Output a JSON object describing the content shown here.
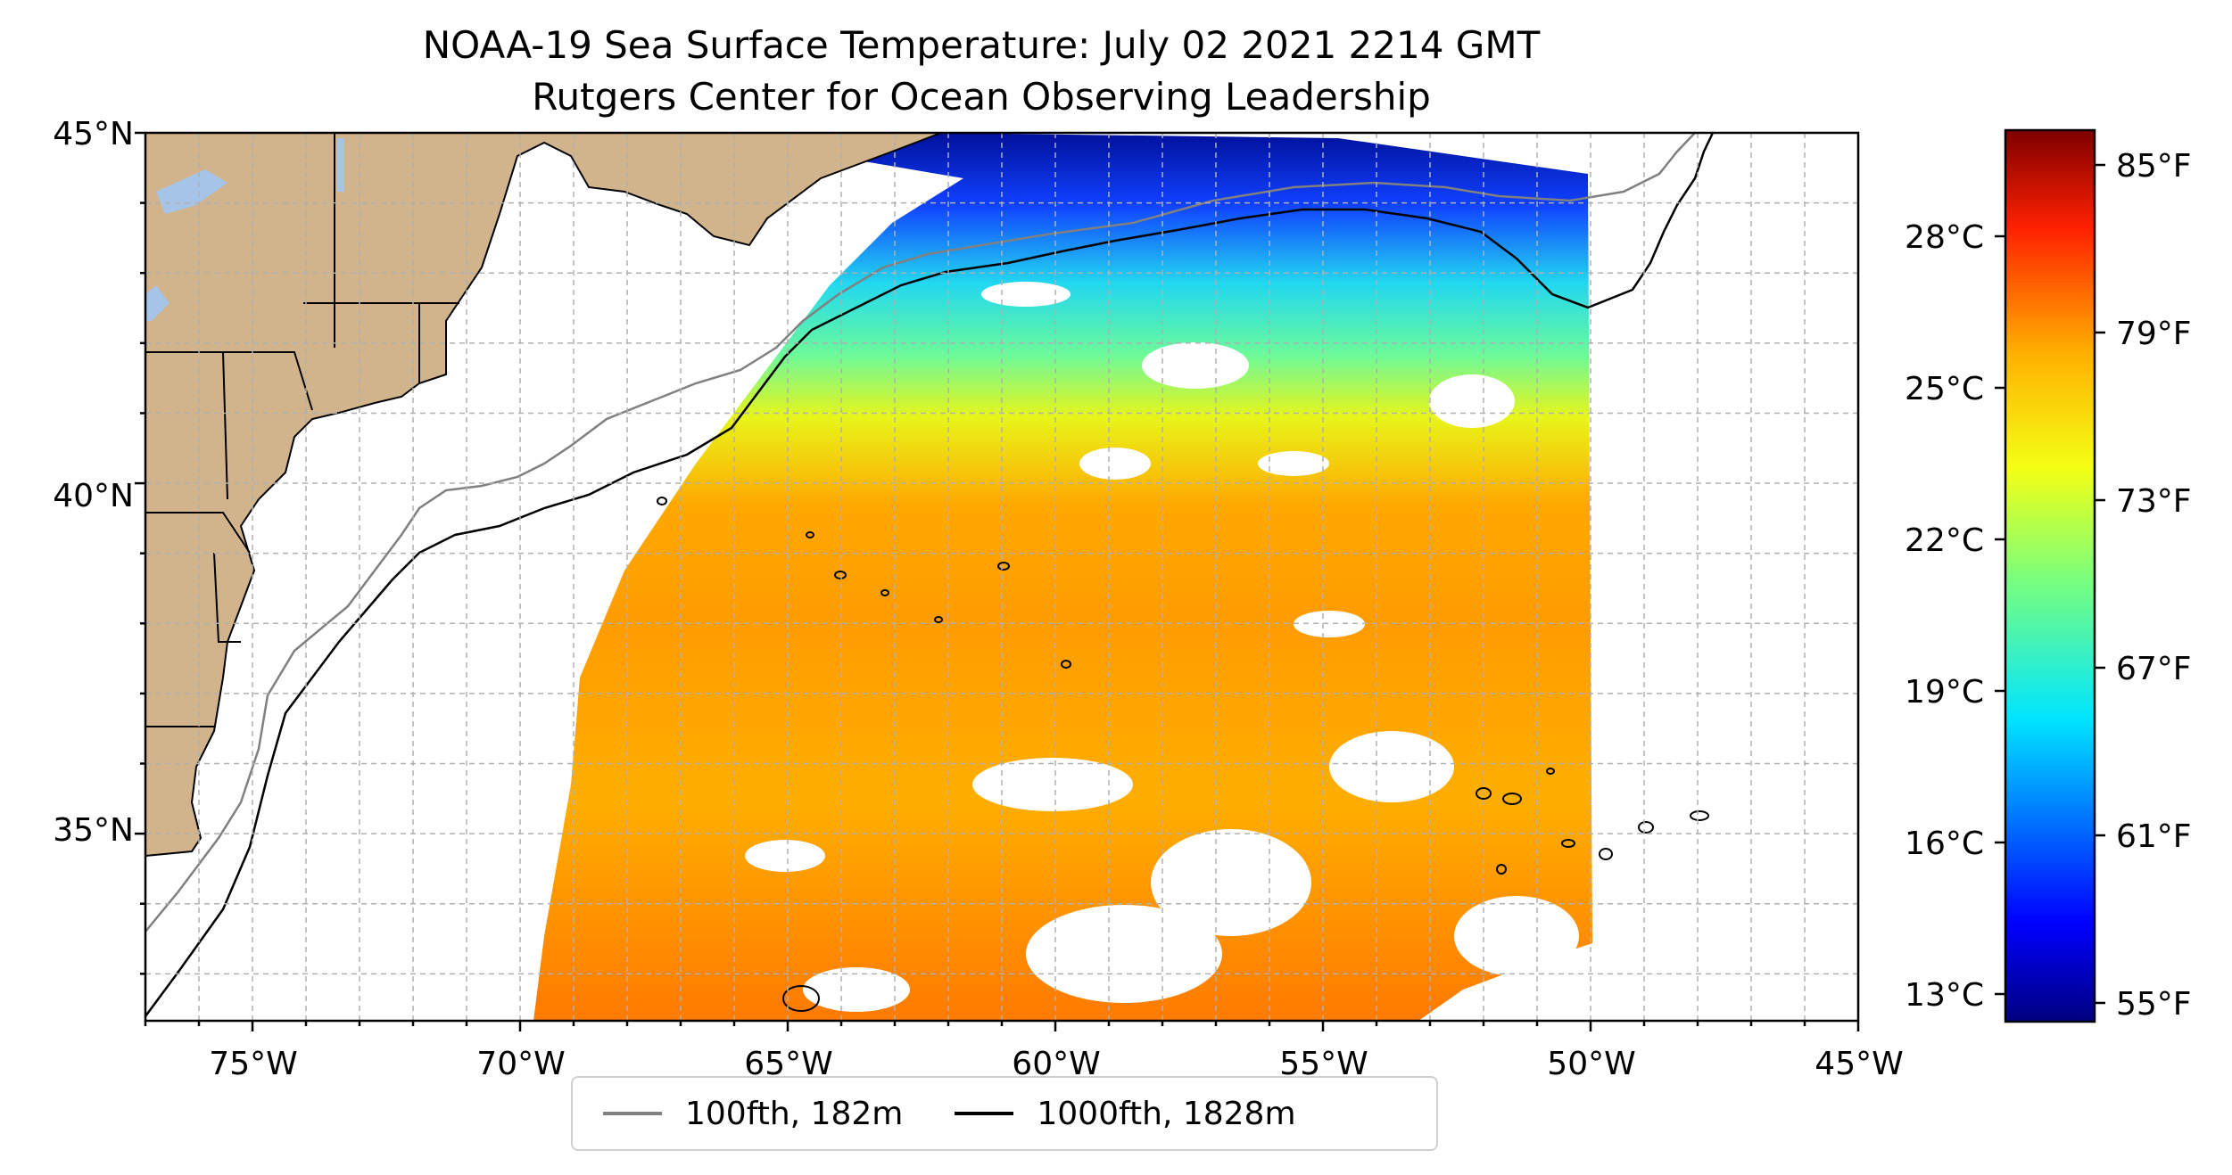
{
  "title": "NOAA-19 Sea Surface Temperature: July 02 2021 2214 GMT",
  "subtitle": "Rutgers Center for Ocean Observing Leadership",
  "map": {
    "lon_range": [
      -77,
      -45
    ],
    "lat_range": [
      32.33,
      45
    ],
    "lon_ticks": [
      "75°W",
      "70°W",
      "65°W",
      "60°W",
      "55°W",
      "50°W",
      "45°W"
    ],
    "lat_ticks": [
      "45°N",
      "40°N",
      "35°N"
    ],
    "land_color": "#d2b48c",
    "water_color": "#a6c4e8",
    "grid": true
  },
  "legend": [
    {
      "label": "100fth, 182m",
      "color": "#808080"
    },
    {
      "label": "1000fth, 1828m",
      "color": "#000000"
    }
  ],
  "colorbar": {
    "colormap": "jet",
    "fahrenheit_ticks": [
      "85°F",
      "79°F",
      "73°F",
      "67°F",
      "61°F",
      "55°F"
    ],
    "celsius_ticks": [
      "28°C",
      "25°C",
      "22°C",
      "19°C",
      "16°C",
      "13°C"
    ]
  }
}
